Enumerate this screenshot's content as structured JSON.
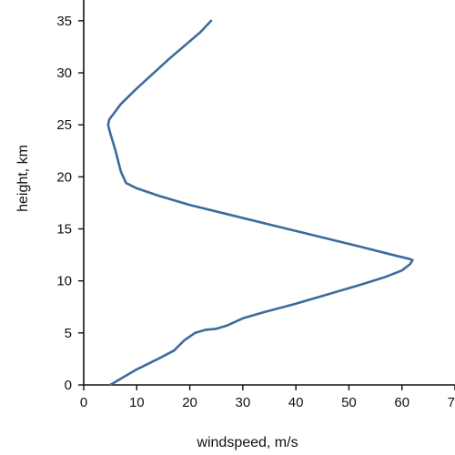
{
  "chart_data": {
    "type": "line",
    "title": "",
    "xlabel": "windspeed, m/s",
    "ylabel": "height, km",
    "xlim": [
      0,
      70
    ],
    "ylim": [
      0,
      37
    ],
    "xticks": [
      0,
      10,
      20,
      30,
      40,
      50,
      60,
      70
    ],
    "yticks": [
      0,
      5,
      10,
      15,
      20,
      25,
      30,
      35
    ],
    "grid": false,
    "legend": "none",
    "series": [
      {
        "color": "#3d6a9e",
        "x": [
          5,
          10,
          14,
          17,
          19,
          21,
          23,
          25,
          27,
          30,
          34,
          40,
          46,
          52,
          57,
          60,
          61.5,
          62,
          61.5,
          59,
          52,
          44,
          36,
          28,
          20,
          14,
          10,
          8,
          7,
          6.5,
          6,
          5,
          4.6,
          4.8,
          7,
          10,
          13,
          16,
          19,
          22,
          24
        ],
        "y": [
          0,
          1.5,
          2.5,
          3.3,
          4.3,
          5.0,
          5.3,
          5.4,
          5.7,
          6.4,
          7.0,
          7.8,
          8.7,
          9.6,
          10.4,
          11.0,
          11.6,
          12.0,
          12.1,
          12.4,
          13.3,
          14.3,
          15.3,
          16.3,
          17.3,
          18.2,
          18.9,
          19.4,
          20.5,
          21.5,
          22.5,
          24.2,
          25.0,
          25.5,
          27.0,
          28.5,
          29.9,
          31.3,
          32.6,
          33.9,
          35.0
        ]
      }
    ]
  }
}
